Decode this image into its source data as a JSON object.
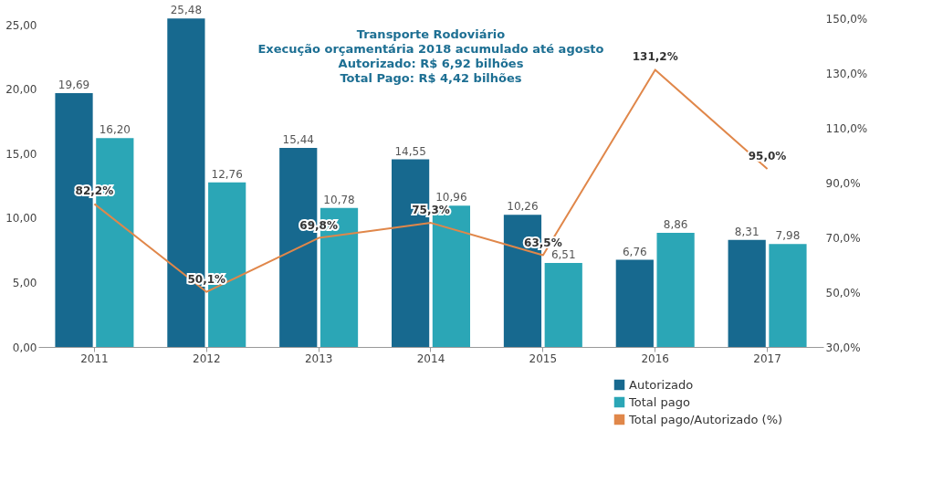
{
  "chart_data": {
    "type": "bar",
    "title": "Transporte Rodoviário",
    "annotations": [
      "Execução orçamentária 2018 acumulado até agosto",
      "Autorizado: R$ 6,92 bilhões",
      "Total Pago: R$ 4,42 bilhões"
    ],
    "categories": [
      "2011",
      "2012",
      "2013",
      "2014",
      "2015",
      "2016",
      "2017"
    ],
    "series": [
      {
        "name": "Autorizado",
        "color": "#17698f",
        "values": [
          19.69,
          25.48,
          15.44,
          14.55,
          10.26,
          6.76,
          8.31
        ],
        "value_labels": [
          "19,69",
          "25,48",
          "15,44",
          "14,55",
          "10,26",
          "6,76",
          "8,31"
        ]
      },
      {
        "name": "Total pago",
        "color": "#2ba6b6",
        "values": [
          16.2,
          12.76,
          10.78,
          10.96,
          6.51,
          8.86,
          7.98
        ],
        "value_labels": [
          "16,20",
          "12,76",
          "10,78",
          "10,96",
          "6,51",
          "8,86",
          "7,98"
        ]
      },
      {
        "name": "Total pago/Autorizado (%)",
        "type": "line",
        "axis": "y2",
        "color": "#e0874a",
        "values": [
          82.2,
          50.1,
          69.8,
          75.3,
          63.5,
          131.2,
          95.0
        ],
        "value_labels": [
          "82,2%",
          "50,1%",
          "69,8%",
          "75,3%",
          "63,5%",
          "131,2%",
          "95,0%"
        ]
      }
    ],
    "ylim": [
      0,
      25.5
    ],
    "yticks": [
      {
        "value": 0,
        "label": "0,00"
      },
      {
        "value": 5,
        "label": "5,00"
      },
      {
        "value": 10,
        "label": "10,00"
      },
      {
        "value": 15,
        "label": "15,00"
      },
      {
        "value": 20,
        "label": "20,00"
      },
      {
        "value": 25,
        "label": "25,00"
      }
    ],
    "y2lim": [
      30,
      150
    ],
    "y2ticks": [
      {
        "value": 30,
        "label": "30,0%"
      },
      {
        "value": 50,
        "label": "50,0%"
      },
      {
        "value": 70,
        "label": "70,0%"
      },
      {
        "value": 90,
        "label": "90,0%"
      },
      {
        "value": 110,
        "label": "110,0%"
      },
      {
        "value": 130,
        "label": "130,0%"
      },
      {
        "value": 150,
        "label": "150,0%"
      }
    ],
    "legend": "bottom right",
    "grid": false,
    "marker": "none",
    "line_style": "solid"
  }
}
